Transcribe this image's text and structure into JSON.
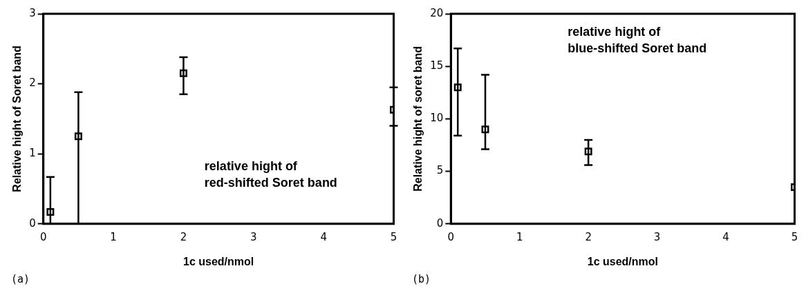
{
  "chart_data": [
    {
      "type": "scatter",
      "xlabel": "1c used/nmol",
      "ylabel": "Relative hight of Soret band",
      "x": [
        0.1,
        0.5,
        2,
        5
      ],
      "values": [
        0.17,
        1.25,
        2.15,
        1.63
      ],
      "errors": [
        [
          0,
          0.67
        ],
        [
          0,
          1.88
        ],
        [
          1.85,
          2.38
        ],
        [
          1.4,
          1.95
        ]
      ],
      "color": "#000000",
      "marker": "square",
      "xlim": [
        0,
        5
      ],
      "xticks": [
        0,
        1,
        2,
        3,
        4,
        5
      ],
      "ylim": [
        0,
        3
      ],
      "yticks": [
        0,
        1,
        2,
        3
      ],
      "grid": false,
      "legend": false,
      "annotations": [
        "relative hight of\nred-shifted Soret band",
        "(a)"
      ]
    },
    {
      "type": "scatter",
      "xlabel": "1c used/nmol",
      "ylabel": "Relative hight of soret band",
      "x": [
        0.1,
        0.5,
        2,
        5
      ],
      "values": [
        13,
        9,
        6.9,
        3.5
      ],
      "errors": [
        [
          8.4,
          16.7
        ],
        [
          7.1,
          14.2
        ],
        [
          5.6,
          8
        ],
        null
      ],
      "color": "#000000",
      "marker": "square",
      "xlim": [
        0,
        5
      ],
      "xticks": [
        0,
        1,
        2,
        3,
        4,
        5
      ],
      "ylim": [
        0,
        20
      ],
      "yticks": [
        0,
        5,
        10,
        15,
        20
      ],
      "grid": false,
      "legend": false,
      "annotations": [
        "relative hight of\nblue-shifted Soret band",
        "(b)"
      ]
    }
  ]
}
